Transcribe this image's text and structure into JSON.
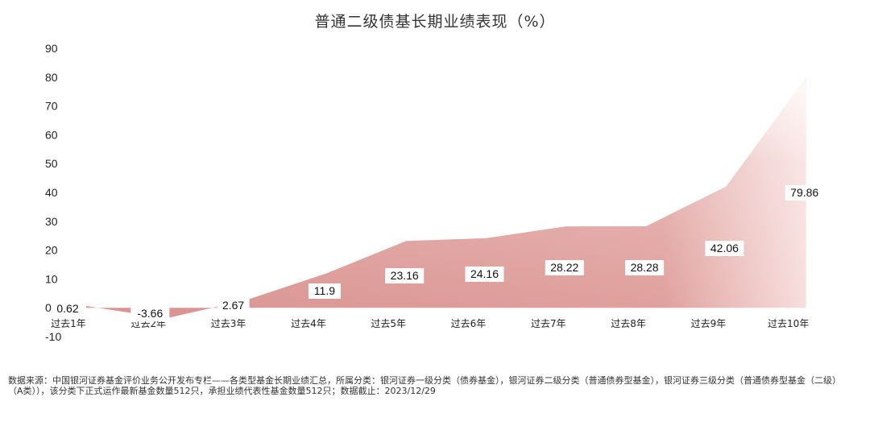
{
  "chart_data": {
    "type": "area",
    "title": "普通二级债基长期业绩表现（%）",
    "categories": [
      "过去1年",
      "过去2年",
      "过去3年",
      "过去4年",
      "过去5年",
      "过去6年",
      "过去7年",
      "过去8年",
      "过去9年",
      "过去10年"
    ],
    "values": [
      0.62,
      -3.66,
      2.67,
      11.9,
      23.16,
      24.16,
      28.22,
      28.28,
      42.06,
      79.86
    ],
    "value_labels": [
      "0.62",
      "-3.66",
      "2.67",
      "11.9",
      "23.16",
      "24.16",
      "28.22",
      "28.28",
      "42.06",
      "79.86"
    ],
    "ylim": [
      -10,
      90
    ],
    "yticks": [
      "-10",
      "0",
      "10",
      "20",
      "30",
      "40",
      "50",
      "60",
      "70",
      "80",
      "90"
    ],
    "grid": false,
    "colors": {
      "fill_dark": "#dd9a96",
      "fill_light": "#fbeceb"
    }
  },
  "source_note": "数据来源：中国银河证券基金评价业务公开发布专栏——各类型基金长期业绩汇总，所属分类：银河证券一级分类（债券基金），银河证券二级分类（普通债券型基金），银河证券三级分类（普通债券型基金（二级）（A类）），该分类下正式运作最新基金数量512只，承担业绩代表性基金数量512只；数据截止：2023/12/29"
}
